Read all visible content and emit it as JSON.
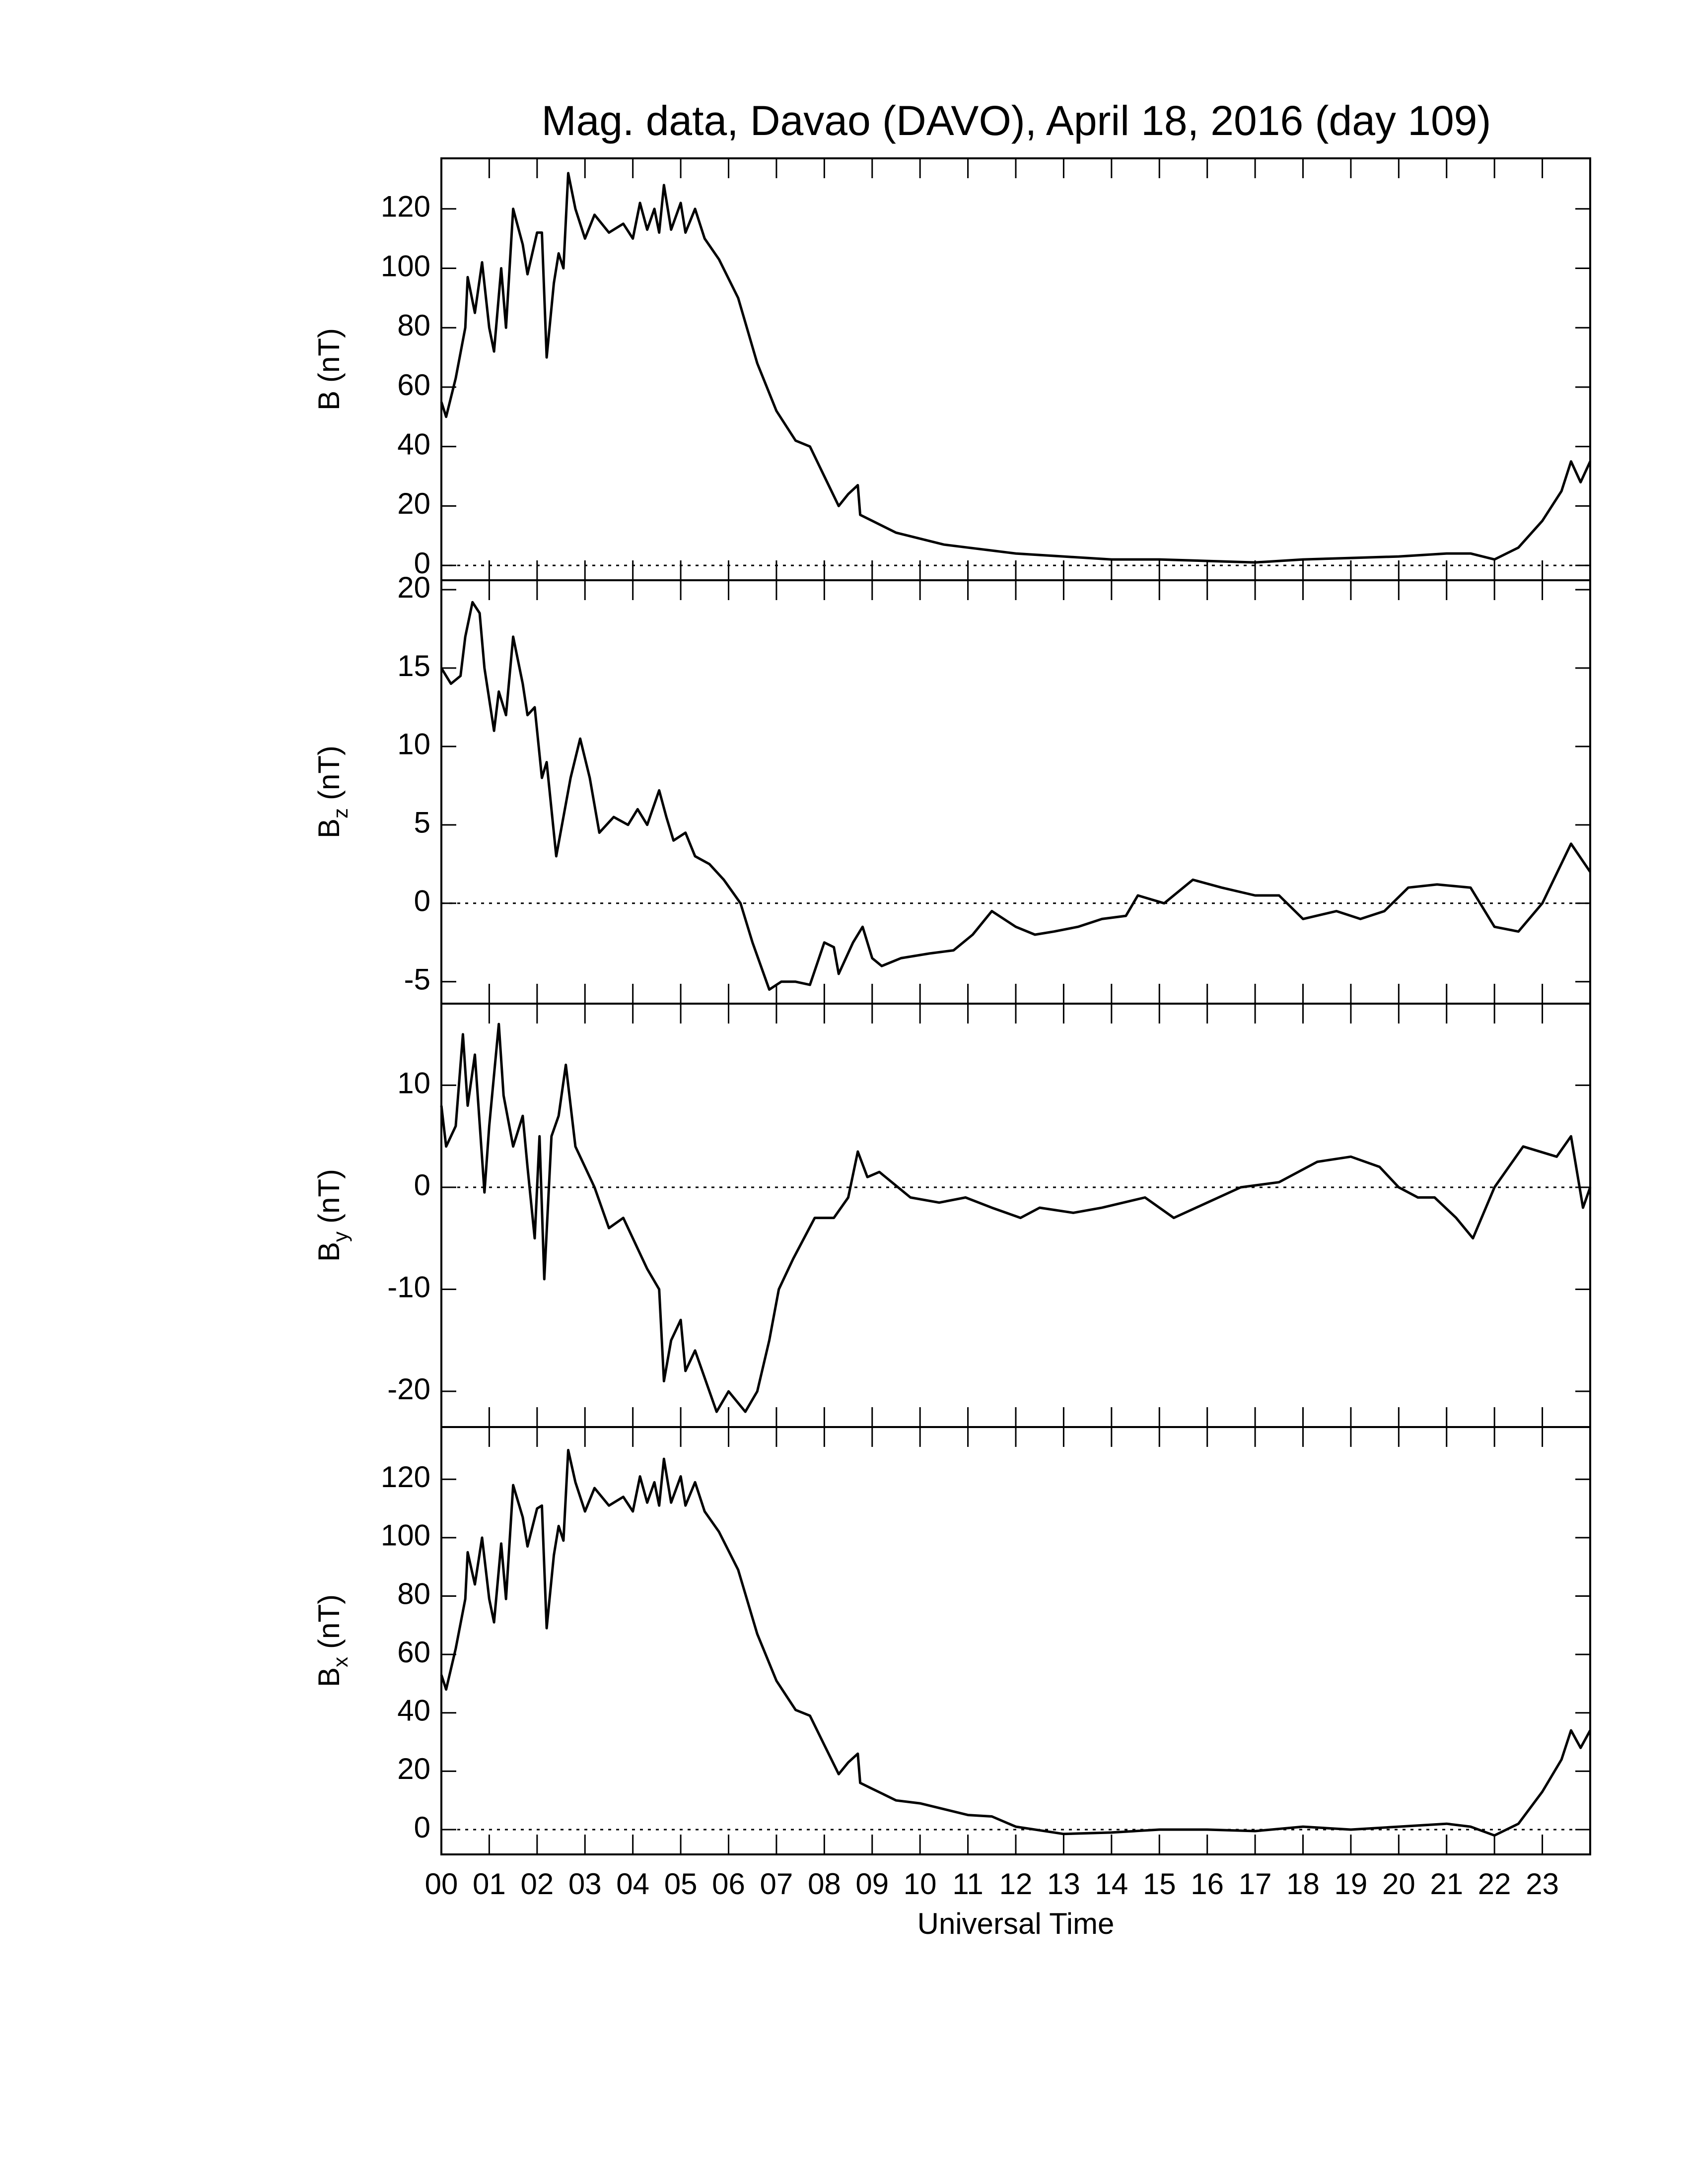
{
  "chart_data": [
    {
      "type": "line",
      "title": "Mag. data, Davao (DAVO), April 18, 2016 (day 109)",
      "ylabel": [
        "B",
        "(nT)"
      ],
      "color": "#000000",
      "xlim": [
        0,
        24
      ],
      "ylim": [
        -5,
        137
      ],
      "yticks": [
        0,
        20,
        40,
        60,
        80,
        100,
        120
      ],
      "reference_line": 0,
      "x": [
        0,
        0.1,
        0.3,
        0.5,
        0.55,
        0.7,
        0.85,
        1.0,
        1.1,
        1.25,
        1.35,
        1.5,
        1.7,
        1.8,
        2.0,
        2.1,
        2.2,
        2.35,
        2.45,
        2.55,
        2.65,
        2.8,
        3.0,
        3.2,
        3.5,
        3.8,
        4.0,
        4.15,
        4.3,
        4.45,
        4.55,
        4.65,
        4.8,
        5.0,
        5.1,
        5.3,
        5.5,
        5.8,
        6.2,
        6.6,
        7.0,
        7.4,
        7.7,
        8.0,
        8.3,
        8.5,
        8.7,
        8.75,
        9.0,
        9.5,
        10,
        10.5,
        11,
        11.5,
        12,
        13,
        14,
        15,
        16,
        17,
        18,
        19,
        20,
        21,
        21.5,
        22,
        22.5,
        23,
        23.4,
        23.6,
        23.8,
        24
      ],
      "values": [
        55,
        50,
        63,
        80,
        97,
        85,
        102,
        80,
        72,
        100,
        80,
        120,
        108,
        98,
        112,
        112,
        70,
        95,
        105,
        100,
        132,
        120,
        110,
        118,
        112,
        115,
        110,
        122,
        113,
        120,
        112,
        128,
        113,
        122,
        112,
        120,
        110,
        103,
        90,
        68,
        52,
        42,
        40,
        30,
        20,
        24,
        27,
        17,
        15,
        11,
        9,
        7,
        6,
        5,
        4,
        3,
        2,
        2,
        1.5,
        1,
        2,
        2.5,
        3,
        4,
        4,
        2,
        6,
        15,
        25,
        35,
        28,
        35
      ]
    },
    {
      "type": "line",
      "ylabel": [
        "B",
        "z",
        "(nT)"
      ],
      "color": "#000000",
      "xlim": [
        0,
        24
      ],
      "ylim": [
        -6.4,
        20.6
      ],
      "yticks": [
        -5,
        0,
        5,
        10,
        15,
        20
      ],
      "reference_line": 0,
      "x": [
        0,
        0.2,
        0.4,
        0.5,
        0.65,
        0.8,
        0.9,
        1.1,
        1.2,
        1.35,
        1.5,
        1.7,
        1.8,
        1.95,
        2.1,
        2.2,
        2.4,
        2.7,
        2.9,
        3.1,
        3.3,
        3.6,
        3.9,
        4.1,
        4.3,
        4.55,
        4.7,
        4.85,
        5.1,
        5.3,
        5.6,
        5.9,
        6.25,
        6.5,
        6.85,
        7.1,
        7.4,
        7.7,
        8.0,
        8.2,
        8.3,
        8.6,
        8.8,
        9.0,
        9.2,
        9.6,
        10.2,
        10.7,
        11.1,
        11.5,
        12.0,
        12.4,
        12.8,
        13.3,
        13.8,
        14.3,
        14.55,
        15.1,
        15.7,
        16.3,
        17.0,
        17.5,
        18.0,
        18.7,
        19.2,
        19.7,
        20.2,
        20.8,
        21.5,
        22.0,
        22.5,
        23.0,
        23.6,
        24
      ],
      "values": [
        15,
        14,
        14.5,
        17,
        19.2,
        18.5,
        15,
        11,
        13.5,
        12,
        17,
        14,
        12,
        12.5,
        8,
        9,
        3,
        8,
        10.5,
        8,
        4.5,
        5.5,
        5,
        6,
        5,
        7.2,
        5.5,
        4,
        4.5,
        3,
        2.5,
        1.5,
        0,
        -2.5,
        -5.5,
        -5,
        -5,
        -5.2,
        -2.5,
        -2.8,
        -4.5,
        -2.5,
        -1.5,
        -3.5,
        -4,
        -3.5,
        -3.2,
        -3,
        -2,
        -0.5,
        -1.5,
        -2,
        -1.8,
        -1.5,
        -1,
        -0.8,
        0.5,
        0,
        1.5,
        1,
        0.5,
        0.5,
        -1,
        -0.5,
        -1,
        -0.5,
        1,
        1.2,
        1,
        -1.5,
        -1.8,
        0,
        3.8,
        2
      ]
    },
    {
      "type": "line",
      "ylabel": [
        "B",
        "y",
        "(nT)"
      ],
      "color": "#000000",
      "xlim": [
        0,
        24
      ],
      "ylim": [
        -23.5,
        18
      ],
      "yticks": [
        -20,
        -10,
        0,
        10
      ],
      "reference_line": 0,
      "x": [
        0,
        0.1,
        0.3,
        0.45,
        0.55,
        0.7,
        0.9,
        1.0,
        1.2,
        1.3,
        1.5,
        1.7,
        1.8,
        1.95,
        2.05,
        2.15,
        2.3,
        2.45,
        2.6,
        2.8,
        3.0,
        3.2,
        3.5,
        3.8,
        4.1,
        4.3,
        4.55,
        4.65,
        4.8,
        5.0,
        5.1,
        5.3,
        5.75,
        6.0,
        6.35,
        6.6,
        6.85,
        7.05,
        7.35,
        7.8,
        8.2,
        8.5,
        8.7,
        8.9,
        9.15,
        9.8,
        10.4,
        10.95,
        11.5,
        12.1,
        12.5,
        13.2,
        13.8,
        14.7,
        15.3,
        16.0,
        16.7,
        17.5,
        18.3,
        19.0,
        19.6,
        20.0,
        20.4,
        20.75,
        21.2,
        21.55,
        22.0,
        22.6,
        23.3,
        23.6,
        23.85,
        24
      ],
      "values": [
        8,
        4,
        6,
        15,
        8,
        13,
        -0.5,
        6,
        16,
        9,
        4,
        7,
        2,
        -5,
        5,
        -9,
        5,
        7,
        12,
        4,
        2,
        0,
        -4,
        -3,
        -6,
        -8,
        -10,
        -19,
        -15,
        -13,
        -18,
        -16,
        -22,
        -20,
        -22,
        -20,
        -15,
        -10,
        -7,
        -3,
        -3,
        -1,
        3.5,
        1,
        1.5,
        -1,
        -1.5,
        -1,
        -2,
        -3,
        -2,
        -2.5,
        -2,
        -1,
        -3,
        -1.5,
        0,
        0.5,
        2.5,
        3,
        2,
        0,
        -1,
        -1,
        -3,
        -5,
        0,
        4,
        3,
        5,
        -2,
        0
      ]
    },
    {
      "type": "line",
      "ylabel": [
        "B",
        "x",
        "(nT)"
      ],
      "xlabel": "Universal Time",
      "color": "#000000",
      "xlim": [
        0,
        24
      ],
      "ylim": [
        -8.5,
        137.9
      ],
      "yticks": [
        0,
        20,
        40,
        60,
        80,
        100,
        120
      ],
      "reference_line": 0,
      "xticks": [
        {
          "value": 0,
          "label": "00"
        },
        {
          "value": 1,
          "label": "01"
        },
        {
          "value": 2,
          "label": "02"
        },
        {
          "value": 3,
          "label": "03"
        },
        {
          "value": 4,
          "label": "04"
        },
        {
          "value": 5,
          "label": "05"
        },
        {
          "value": 6,
          "label": "06"
        },
        {
          "value": 7,
          "label": "07"
        },
        {
          "value": 8,
          "label": "08"
        },
        {
          "value": 9,
          "label": "09"
        },
        {
          "value": 10,
          "label": "10"
        },
        {
          "value": 11,
          "label": "11"
        },
        {
          "value": 12,
          "label": "12"
        },
        {
          "value": 13,
          "label": "13"
        },
        {
          "value": 14,
          "label": "14"
        },
        {
          "value": 15,
          "label": "15"
        },
        {
          "value": 16,
          "label": "16"
        },
        {
          "value": 17,
          "label": "17"
        },
        {
          "value": 18,
          "label": "18"
        },
        {
          "value": 19,
          "label": "19"
        },
        {
          "value": 20,
          "label": "20"
        },
        {
          "value": 21,
          "label": "21"
        },
        {
          "value": 22,
          "label": "22"
        },
        {
          "value": 23,
          "label": "23"
        }
      ],
      "x": [
        0,
        0.1,
        0.3,
        0.5,
        0.55,
        0.7,
        0.85,
        1.0,
        1.1,
        1.25,
        1.35,
        1.5,
        1.7,
        1.8,
        2.0,
        2.1,
        2.2,
        2.35,
        2.45,
        2.55,
        2.65,
        2.8,
        3.0,
        3.2,
        3.5,
        3.8,
        4.0,
        4.15,
        4.3,
        4.45,
        4.55,
        4.65,
        4.8,
        5.0,
        5.1,
        5.3,
        5.5,
        5.8,
        6.2,
        6.6,
        7.0,
        7.4,
        7.7,
        8.0,
        8.3,
        8.5,
        8.7,
        8.75,
        9.0,
        9.5,
        10,
        10.5,
        11,
        11.5,
        12,
        13,
        14,
        15,
        16,
        17,
        18,
        19,
        20,
        21,
        21.5,
        22,
        22.5,
        23,
        23.4,
        23.6,
        23.8,
        24
      ],
      "values": [
        53,
        48,
        62,
        79,
        95,
        84,
        100,
        79,
        71,
        98,
        79,
        118,
        107,
        97,
        110,
        111,
        69,
        94,
        104,
        99,
        130,
        119,
        109,
        117,
        111,
        114,
        109,
        121,
        112,
        119,
        111,
        127,
        112,
        121,
        111,
        119,
        109,
        102,
        89,
        67,
        51,
        41,
        39,
        29,
        19,
        23,
        26,
        16,
        14,
        10,
        9,
        7,
        5,
        4.5,
        1,
        -1.5,
        -1,
        0,
        0,
        -0.5,
        1,
        0,
        1,
        2,
        1,
        -2,
        2,
        13,
        24,
        34,
        28,
        34
      ]
    }
  ]
}
